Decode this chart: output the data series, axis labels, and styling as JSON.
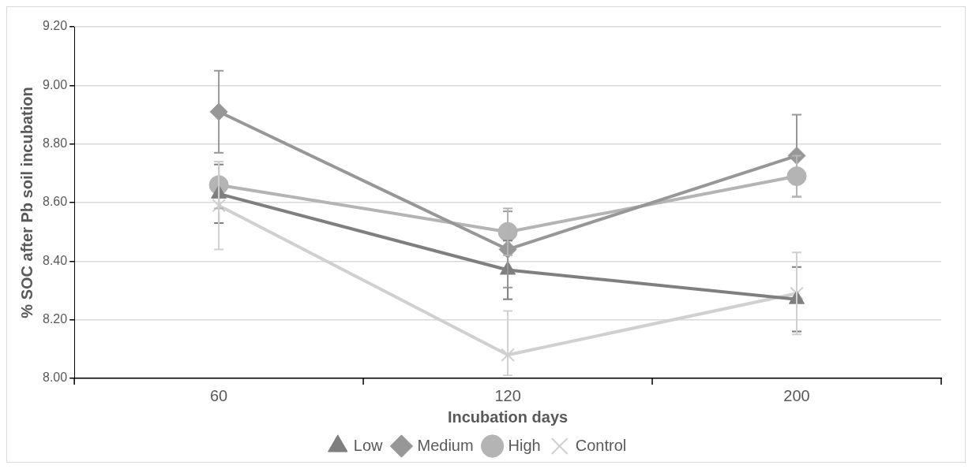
{
  "chart_data": {
    "type": "line",
    "xlabel": "Incubation days",
    "ylabel": "% SOC after Pb soil incubation",
    "categories": [
      "60",
      "120",
      "200"
    ],
    "ylim": [
      8.0,
      9.2
    ],
    "yticks": [
      {
        "value": 8.0,
        "label": "8.00"
      },
      {
        "value": 8.2,
        "label": "8.20"
      },
      {
        "value": 8.4,
        "label": "8.40"
      },
      {
        "value": 8.6,
        "label": "8.60"
      },
      {
        "value": 8.8,
        "label": "8.80"
      },
      {
        "value": 9.0,
        "label": "9.00"
      },
      {
        "value": 9.2,
        "label": "9.20"
      }
    ],
    "grid": "y",
    "legend": "bottom",
    "line_style": "solid",
    "series": [
      {
        "name": "Low",
        "color": "#7f7f7f",
        "marker": "triangle",
        "values": [
          8.63,
          8.37,
          8.27
        ],
        "errors": [
          0.1,
          0.1,
          0.11
        ]
      },
      {
        "name": "Medium",
        "color": "#979797",
        "marker": "diamond",
        "values": [
          8.91,
          8.44,
          8.76
        ],
        "errors": [
          0.14,
          0.13,
          0.14
        ]
      },
      {
        "name": "High",
        "color": "#b4b4b4",
        "marker": "circle",
        "values": [
          8.66,
          8.5,
          8.69
        ],
        "errors": [
          0.08,
          0.08,
          0.07
        ]
      },
      {
        "name": "Control",
        "color": "#d0d0d0",
        "marker": "cross",
        "values": [
          8.59,
          8.08,
          8.29
        ],
        "errors": [
          0.15,
          [
            8.01,
            8.23
          ],
          0.14
        ]
      }
    ]
  }
}
